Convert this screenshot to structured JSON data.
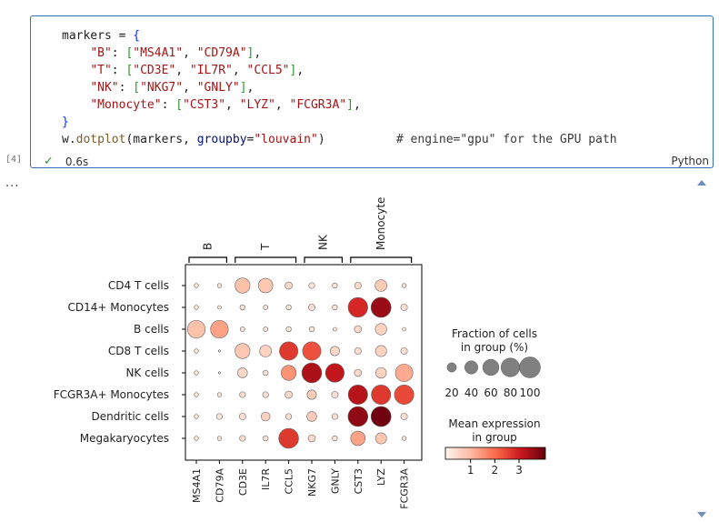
{
  "cell": {
    "execution_count": "[4]",
    "status_time": "0.6s",
    "language": "Python",
    "code_lines": [
      "markers = {",
      "    \"B\": [\"MS4A1\", \"CD79A\"],",
      "    \"T\": [\"CD3E\", \"IL7R\", \"CCL5\"],",
      "    \"NK\": [\"NKG7\", \"GNLY\"],",
      "    \"Monocyte\": [\"CST3\", \"LYZ\", \"FCGR3A\"],",
      "}",
      "w.dotplot(markers, groupby=\"louvain\")          # engine=\"gpu\" for the GPU path"
    ]
  },
  "output": {
    "ellipsis": "..."
  },
  "chart_data": {
    "type": "dotplot",
    "groups": [
      "CD4 T cells",
      "CD14+ Monocytes",
      "B cells",
      "CD8 T cells",
      "NK cells",
      "FCGR3A+ Monocytes",
      "Dendritic cells",
      "Megakaryocytes"
    ],
    "genes": [
      "MS4A1",
      "CD79A",
      "CD3E",
      "IL7R",
      "CCL5",
      "NKG7",
      "GNLY",
      "CST3",
      "LYZ",
      "FCGR3A"
    ],
    "gene_groups": [
      {
        "label": "B",
        "genes": [
          "MS4A1",
          "CD79A"
        ]
      },
      {
        "label": "T",
        "genes": [
          "CD3E",
          "IL7R",
          "CCL5"
        ]
      },
      {
        "label": "NK",
        "genes": [
          "NKG7",
          "GNLY"
        ]
      },
      {
        "label": "Monocyte",
        "genes": [
          "CST3",
          "LYZ",
          "FCGR3A"
        ]
      }
    ],
    "fraction_percent": [
      [
        4,
        4,
        52,
        48,
        12,
        8,
        6,
        10,
        32,
        4
      ],
      [
        4,
        3,
        6,
        5,
        6,
        10,
        6,
        88,
        92,
        10
      ],
      [
        72,
        72,
        5,
        5,
        6,
        6,
        3,
        12,
        30,
        3
      ],
      [
        4,
        1,
        52,
        32,
        78,
        78,
        20,
        10,
        28,
        10
      ],
      [
        4,
        1,
        22,
        6,
        52,
        90,
        80,
        12,
        26,
        70
      ],
      [
        4,
        4,
        8,
        8,
        12,
        20,
        10,
        86,
        86,
        86
      ],
      [
        4,
        8,
        10,
        18,
        8,
        22,
        8,
        90,
        92,
        10
      ],
      [
        4,
        4,
        8,
        6,
        90,
        12,
        6,
        48,
        28,
        4
      ]
    ],
    "mean_expression": [
      [
        0.3,
        0.3,
        0.9,
        0.8,
        0.5,
        0.3,
        0.3,
        0.5,
        0.7,
        0.3
      ],
      [
        0.3,
        0.3,
        0.3,
        0.3,
        0.3,
        0.4,
        0.3,
        2.8,
        3.5,
        0.4
      ],
      [
        0.9,
        1.3,
        0.3,
        0.3,
        0.3,
        0.3,
        0.3,
        0.5,
        0.6,
        0.3
      ],
      [
        0.3,
        0.3,
        0.8,
        0.6,
        2.6,
        2.3,
        0.5,
        0.4,
        0.6,
        0.4
      ],
      [
        0.3,
        0.3,
        0.5,
        0.3,
        1.5,
        3.3,
        3.1,
        0.5,
        0.6,
        1.2
      ],
      [
        0.3,
        0.3,
        0.4,
        0.4,
        0.5,
        0.7,
        0.4,
        3.2,
        2.6,
        2.4
      ],
      [
        0.3,
        0.3,
        0.4,
        0.6,
        0.4,
        0.7,
        0.4,
        3.6,
        3.9,
        0.4
      ],
      [
        0.3,
        0.3,
        0.4,
        0.3,
        2.6,
        0.5,
        0.3,
        1.3,
        0.8,
        0.3
      ]
    ],
    "size_legend": {
      "title": "Fraction of cells\nin group (%)",
      "values": [
        20,
        40,
        60,
        80,
        100
      ]
    },
    "color_legend": {
      "title": "Mean expression\nin group",
      "ticks": [
        1,
        2,
        3
      ],
      "range": [
        0,
        4
      ],
      "cmap": "Reds",
      "colors": [
        "#fff5f0",
        "#fcbba1",
        "#fb6a4a",
        "#cb181d",
        "#67000d"
      ]
    },
    "grid": false
  }
}
